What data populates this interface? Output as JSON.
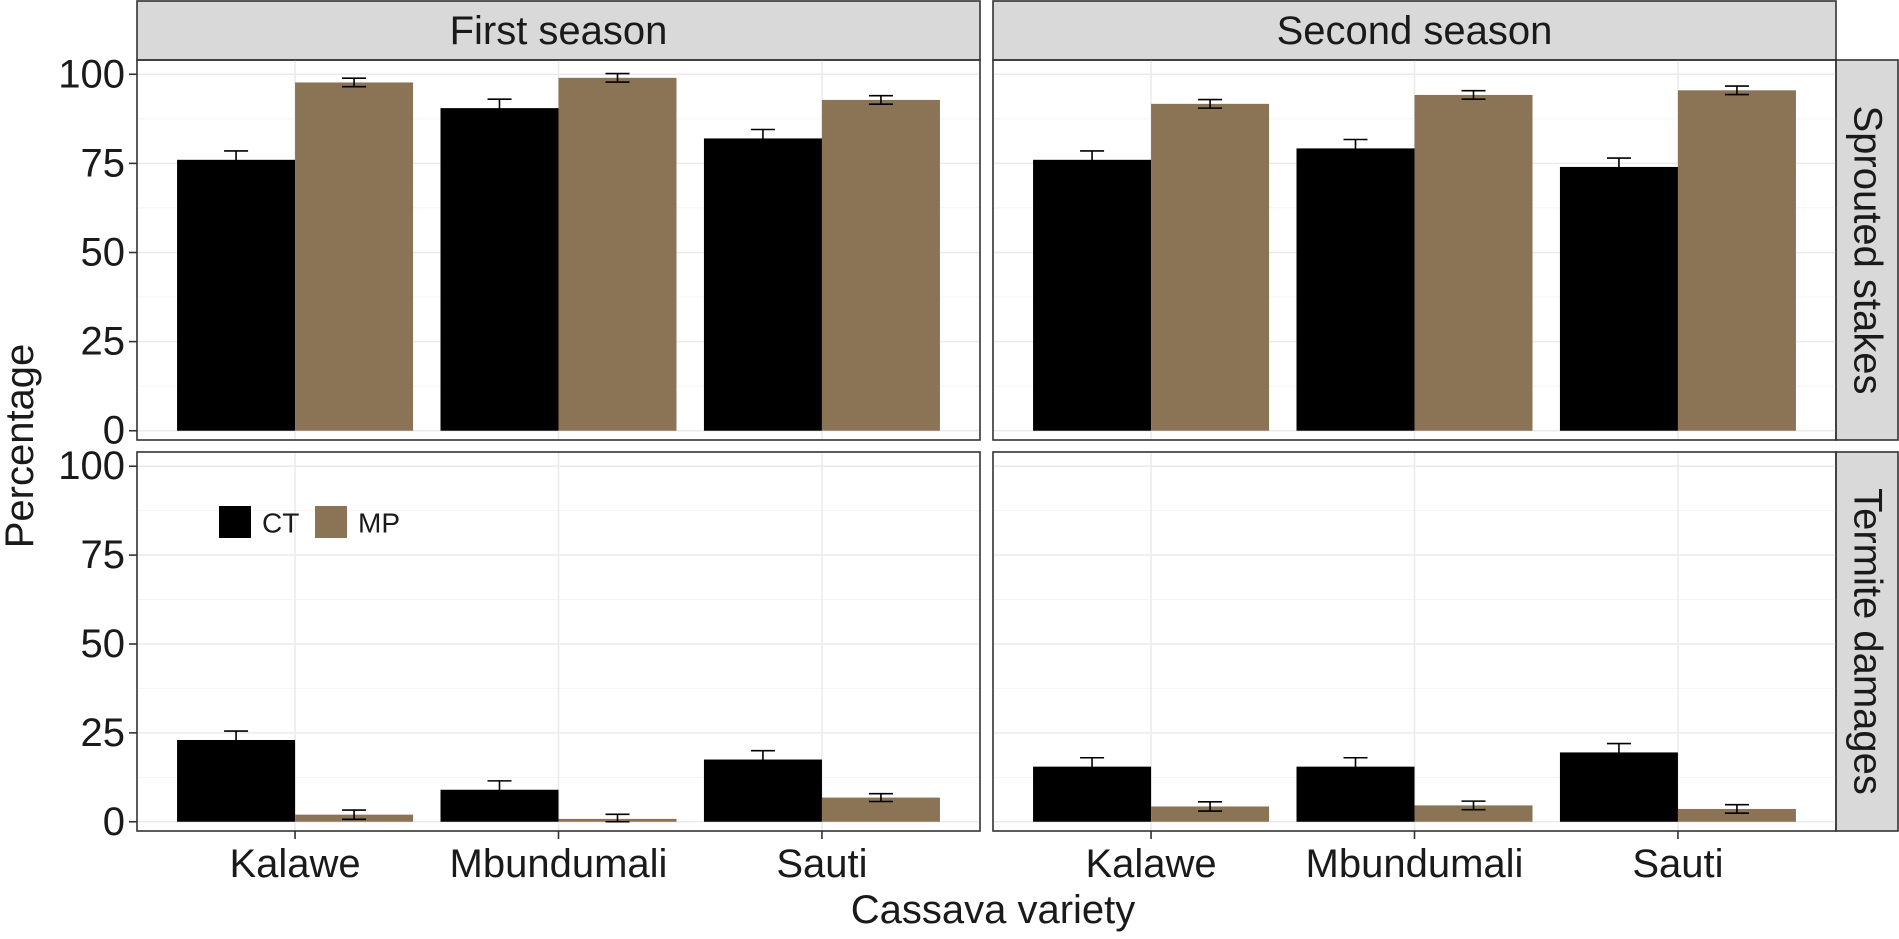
{
  "chart_data": {
    "type": "bar",
    "xlabel": "Cassava variety",
    "ylabel": "Percentage",
    "ylim": [
      0,
      105
    ],
    "yticks": [
      0,
      25,
      50,
      75,
      100
    ],
    "columns": [
      "First season",
      "Second season"
    ],
    "rows": [
      "Sprouted stakes",
      "Termite damages"
    ],
    "categories": [
      "Kalawe",
      "Mbundumali",
      "Sauti"
    ],
    "legend": {
      "placement": "inside-top-left",
      "entries": [
        "CT",
        "MP"
      ]
    },
    "colors": {
      "CT": "#000000",
      "MP": "#8b7355"
    },
    "grid": true,
    "panels": [
      {
        "column": "First season",
        "row": "Sprouted stakes",
        "series": [
          {
            "name": "CT",
            "values": [
              76,
              90.5,
              82
            ],
            "errors": [
              2.5,
              2.5,
              2.5
            ]
          },
          {
            "name": "MP",
            "values": [
              97.7,
              99,
              92.8
            ],
            "errors": [
              1.2,
              1.2,
              1.2
            ]
          }
        ]
      },
      {
        "column": "Second season",
        "row": "Sprouted stakes",
        "series": [
          {
            "name": "CT",
            "values": [
              76,
              79.2,
              74
            ],
            "errors": [
              2.5,
              2.5,
              2.5
            ]
          },
          {
            "name": "MP",
            "values": [
              91.7,
              94.2,
              95.5
            ],
            "errors": [
              1.2,
              1.2,
              1.2
            ]
          }
        ]
      },
      {
        "column": "First season",
        "row": "Termite damages",
        "series": [
          {
            "name": "CT",
            "values": [
              23,
              9,
              17.5
            ],
            "errors": [
              2.5,
              2.5,
              2.5
            ]
          },
          {
            "name": "MP",
            "values": [
              2,
              0.8,
              6.8
            ],
            "errors": [
              1.3,
              1.3,
              1.1
            ]
          }
        ]
      },
      {
        "column": "Second season",
        "row": "Termite damages",
        "series": [
          {
            "name": "CT",
            "values": [
              15.5,
              15.5,
              19.5
            ],
            "errors": [
              2.5,
              2.5,
              2.5
            ]
          },
          {
            "name": "MP",
            "values": [
              4.3,
              4.6,
              3.6
            ],
            "errors": [
              1.3,
              1.2,
              1.2
            ]
          }
        ]
      }
    ]
  }
}
